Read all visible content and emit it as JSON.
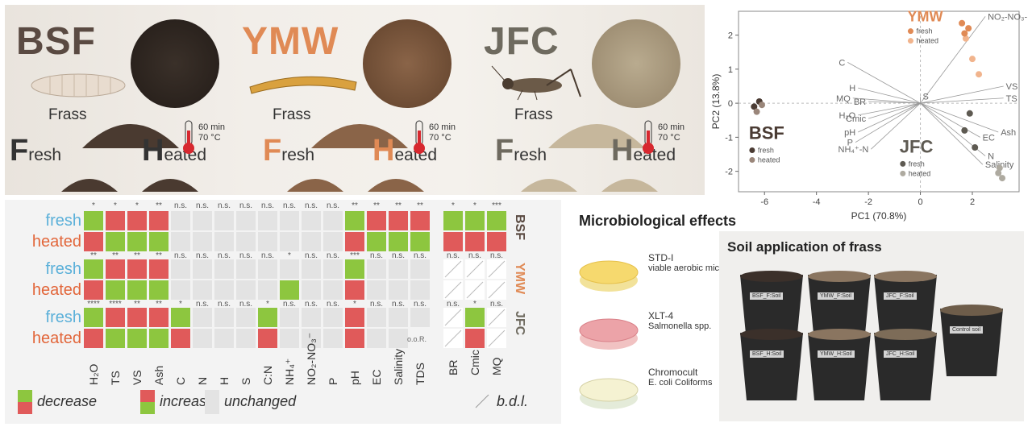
{
  "insects": [
    {
      "code": "BSF",
      "color": "#5a4a42"
    },
    {
      "code": "YMW",
      "color": "#e08a55"
    },
    {
      "code": "JFC",
      "color": "#6e6a5f"
    }
  ],
  "frass_label": "Frass",
  "fresh_rest": "resh",
  "heated_rest": "eated",
  "fresh_cap": "F",
  "heated_cap": "H",
  "heat_time": "60 min",
  "heat_temp": "70 °C",
  "rows": [
    {
      "group": "BSF",
      "label": "fresh",
      "type": "fresh"
    },
    {
      "group": "BSF",
      "label": "heated",
      "type": "heated"
    },
    {
      "group": "YMW",
      "label": "fresh",
      "type": "fresh"
    },
    {
      "group": "YMW",
      "label": "heated",
      "type": "heated"
    },
    {
      "group": "JFC",
      "label": "fresh",
      "type": "fresh"
    },
    {
      "group": "JFC",
      "label": "heated",
      "type": "heated"
    }
  ],
  "columns": [
    "H₂O",
    "TS",
    "VS",
    "Ash",
    "C",
    "N",
    "H",
    "S",
    "C:N",
    "NH₄⁺",
    "NO₂-NO₃⁻",
    "P",
    "pH",
    "EC",
    "Salinity",
    "TDS"
  ],
  "micro_columns": [
    "BR",
    "Cmic",
    "MQ"
  ],
  "cells": [
    [
      "G",
      "R",
      "R",
      "R",
      "N",
      "N",
      "N",
      "N",
      "N",
      "N",
      "N",
      "N",
      "G",
      "R",
      "R",
      "R"
    ],
    [
      "R",
      "G",
      "G",
      "G",
      "N",
      "N",
      "N",
      "N",
      "N",
      "N",
      "N",
      "N",
      "R",
      "G",
      "G",
      "G"
    ],
    [
      "G",
      "R",
      "R",
      "R",
      "N",
      "N",
      "N",
      "N",
      "N",
      "N",
      "N",
      "N",
      "G",
      "N",
      "N",
      "N"
    ],
    [
      "R",
      "G",
      "G",
      "G",
      "N",
      "N",
      "N",
      "N",
      "N",
      "G",
      "N",
      "N",
      "R",
      "N",
      "N",
      "N"
    ],
    [
      "G",
      "R",
      "R",
      "R",
      "G",
      "N",
      "N",
      "N",
      "G",
      "N",
      "N",
      "N",
      "R",
      "N",
      "N",
      "N"
    ],
    [
      "R",
      "G",
      "G",
      "G",
      "R",
      "N",
      "N",
      "N",
      "R",
      "N",
      "N",
      "N",
      "R",
      "N",
      "N",
      "O"
    ]
  ],
  "micro_cells": [
    [
      "G",
      "G",
      "G"
    ],
    [
      "R",
      "R",
      "R"
    ],
    [
      "B",
      "B",
      "B"
    ],
    [
      "B",
      "B",
      "B"
    ],
    [
      "B",
      "G",
      "B"
    ],
    [
      "B",
      "R",
      "B"
    ]
  ],
  "sig_rows": [
    [
      "*",
      "*",
      "*",
      "**",
      "n.s.",
      "n.s.",
      "n.s.",
      "n.s.",
      "n.s.",
      "n.s.",
      "n.s.",
      "n.s.",
      "**",
      "**",
      "**",
      "**"
    ],
    [
      "**",
      "**",
      "**",
      "**",
      "n.s.",
      "n.s.",
      "n.s.",
      "n.s.",
      "n.s.",
      "*",
      "n.s.",
      "n.s.",
      "***",
      "n.s.",
      "n.s.",
      "n.s."
    ],
    [
      "****",
      "****",
      "**",
      "**",
      "*",
      "n.s.",
      "n.s.",
      "n.s.",
      "*",
      "n.s.",
      "n.s.",
      "n.s.",
      "*",
      "n.s.",
      "n.s.",
      "n.s."
    ]
  ],
  "micro_sig_rows": [
    [
      "*",
      "*",
      "***"
    ],
    [
      "n.s.",
      "n.s.",
      "n.s."
    ],
    [
      "n.s.",
      "*",
      "n.s."
    ]
  ],
  "oor_label": "o.o.R.",
  "legend": {
    "decrease": "decrease",
    "increase": "increase",
    "unchanged": "unchanged",
    "bdl": "b.d.l."
  },
  "microbio": {
    "title": "Microbiological effects",
    "items": [
      {
        "name": "STD-I",
        "desc": "viable aerobic microorganisms"
      },
      {
        "name": "XLT-4",
        "desc": "Salmonella spp."
      },
      {
        "name": "Chromocult",
        "desc": "E. coli Coliforms"
      }
    ]
  },
  "soil": {
    "title": "Soil application of frass",
    "pots": [
      "BSF_F:Soil",
      "YMW_F:Soil",
      "JFC_F:Soil",
      "BSF_H:Soil",
      "YMW_H:Soil",
      "JFC_H:Soil",
      "Control soil"
    ]
  },
  "pca": {
    "xlabel": "PC1 (70.8%)",
    "ylabel": "PC2 (13.8%)",
    "xticks": [
      -6,
      -4,
      -2,
      0,
      2
    ],
    "yticks": [
      2,
      1,
      0,
      -1,
      -2
    ],
    "xrange": [
      -7,
      3.8
    ],
    "yrange": [
      -2.6,
      2.7
    ],
    "legend_fresh": "fresh",
    "legend_heated": "heated",
    "vectors": [
      {
        "label": "NO₂-NO₃-N",
        "x": 2.5,
        "y": 2.55
      },
      {
        "label": "C",
        "x": -2.8,
        "y": 1.2
      },
      {
        "label": "VS",
        "x": 3.2,
        "y": 0.5
      },
      {
        "label": "TS",
        "x": 3.2,
        "y": 0.15
      },
      {
        "label": "Ash",
        "x": 3.0,
        "y": -0.85
      },
      {
        "label": "EC",
        "x": 2.3,
        "y": -1.0
      },
      {
        "label": "N",
        "x": 2.5,
        "y": -1.55
      },
      {
        "label": "S",
        "x": 0.0,
        "y": 0.2
      },
      {
        "label": "H",
        "x": -2.4,
        "y": 0.45
      },
      {
        "label": "MQ",
        "x": -2.6,
        "y": 0.15
      },
      {
        "label": "BR",
        "x": -2.0,
        "y": 0.05
      },
      {
        "label": "H₂O",
        "x": -2.4,
        "y": -0.35
      },
      {
        "label": "Cmic",
        "x": -2.0,
        "y": -0.45
      },
      {
        "label": "pH",
        "x": -2.4,
        "y": -0.85
      },
      {
        "label": "P",
        "x": -2.5,
        "y": -1.15
      },
      {
        "label": "NH₄⁺-N",
        "x": -1.9,
        "y": -1.35
      },
      {
        "label": "Salinity",
        "x": 2.4,
        "y": -1.8
      }
    ],
    "points": [
      {
        "group": "BSF",
        "state": "fresh",
        "x": -6.4,
        "y": -0.1
      },
      {
        "group": "BSF",
        "state": "fresh",
        "x": -6.2,
        "y": 0.05
      },
      {
        "group": "BSF",
        "state": "heated",
        "x": -6.3,
        "y": -0.25
      },
      {
        "group": "BSF",
        "state": "heated",
        "x": -6.1,
        "y": -0.05
      },
      {
        "group": "YMW",
        "state": "fresh",
        "x": 1.6,
        "y": 2.35
      },
      {
        "group": "YMW",
        "state": "fresh",
        "x": 1.85,
        "y": 2.2
      },
      {
        "group": "YMW",
        "state": "heated",
        "x": 1.75,
        "y": 1.9
      },
      {
        "group": "YMW",
        "state": "heated",
        "x": 2.0,
        "y": 1.3
      },
      {
        "group": "YMW",
        "state": "heated",
        "x": 2.25,
        "y": 0.85
      },
      {
        "group": "YMW",
        "state": "fresh",
        "x": 1.7,
        "y": 2.05
      },
      {
        "group": "JFC",
        "state": "fresh",
        "x": 1.9,
        "y": -0.3
      },
      {
        "group": "JFC",
        "state": "fresh",
        "x": 1.7,
        "y": -0.8
      },
      {
        "group": "JFC",
        "state": "fresh",
        "x": 2.1,
        "y": -1.3
      },
      {
        "group": "JFC",
        "state": "heated",
        "x": 3.0,
        "y": -2.05
      },
      {
        "group": "JFC",
        "state": "heated",
        "x": 3.15,
        "y": -2.2
      },
      {
        "group": "JFC",
        "state": "heated",
        "x": 3.05,
        "y": -1.9
      }
    ],
    "group_colors": {
      "BSF": {
        "fresh": "#4a3b33",
        "heated": "#9a867a"
      },
      "YMW": {
        "fresh": "#e08a55",
        "heated": "#f1b48d"
      },
      "JFC": {
        "fresh": "#5e5a52",
        "heated": "#aeaaa0"
      }
    }
  },
  "colors": {
    "green": "#8dc63f",
    "red": "#e05a5a",
    "gray": "#e3e3e3",
    "fresh": "#5bb0d9",
    "heated": "#e2663a"
  }
}
